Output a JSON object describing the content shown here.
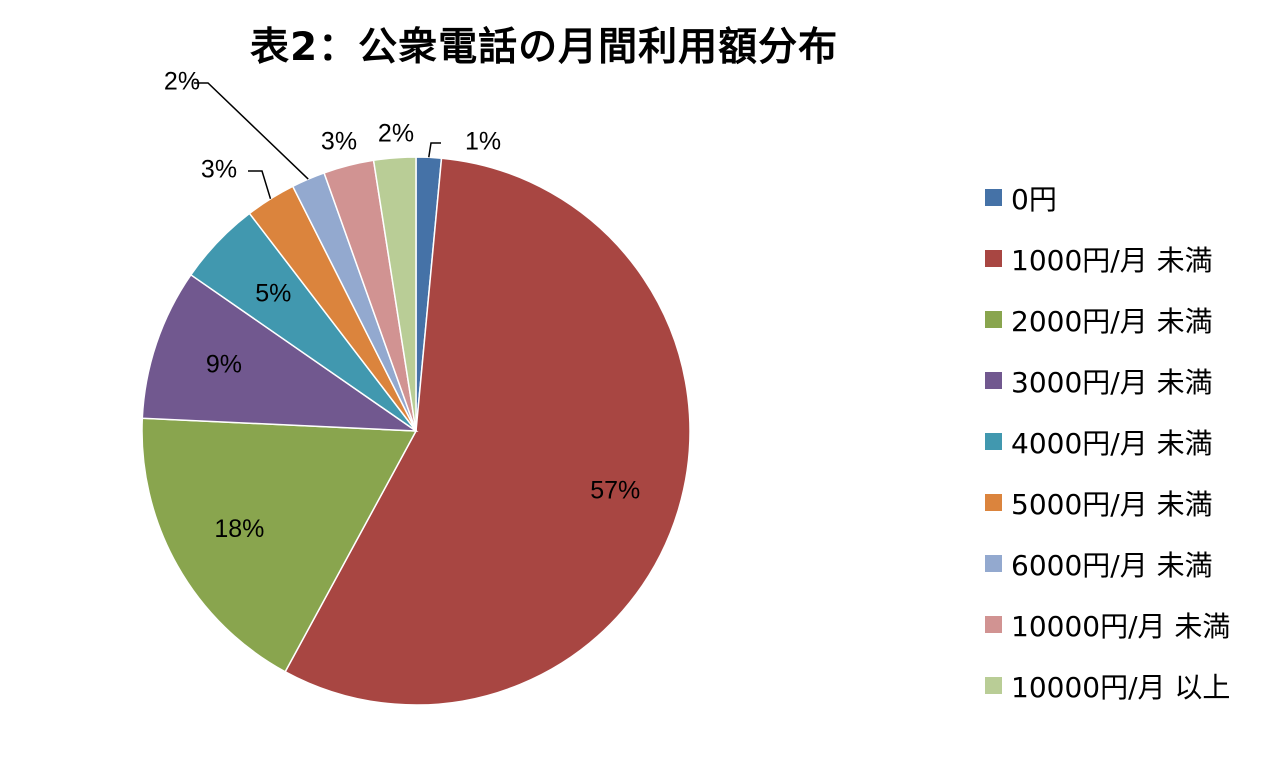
{
  "chart_data": {
    "type": "pie",
    "title": "表2：公衆電話の月間利用額分布",
    "start_angle_deg": 0,
    "direction": "clockwise",
    "legend_position": "right",
    "slices": [
      {
        "name": "0円",
        "value": 1.5,
        "label": "1%",
        "color": "#4572A7",
        "label_style": "callout"
      },
      {
        "name": "1000円/月 未満",
        "value": 57.0,
        "label": "57%",
        "color": "#A84642",
        "label_style": "inside"
      },
      {
        "name": "2000円/月 未満",
        "value": 18.0,
        "label": "18%",
        "color": "#89A54E",
        "label_style": "inside"
      },
      {
        "name": "3000円/月 未満",
        "value": 9.0,
        "label": "9%",
        "color": "#71588F",
        "label_style": "inside"
      },
      {
        "name": "4000円/月 未満",
        "value": 5.0,
        "label": "5%",
        "color": "#4198AF",
        "label_style": "inside"
      },
      {
        "name": "5000円/月 未満",
        "value": 3.0,
        "label": "3%",
        "color": "#DB843D",
        "label_style": "callout"
      },
      {
        "name": "6000円/月 未満",
        "value": 2.0,
        "label": "2%",
        "color": "#93A9CF",
        "label_style": "callout"
      },
      {
        "name": "10000円/月 未満",
        "value": 3.0,
        "label": "3%",
        "color": "#D19392",
        "label_style": "outside"
      },
      {
        "name": "10000円/月 以上",
        "value": 2.5,
        "label": "2%",
        "color": "#B9CD96",
        "label_style": "outside"
      }
    ]
  }
}
